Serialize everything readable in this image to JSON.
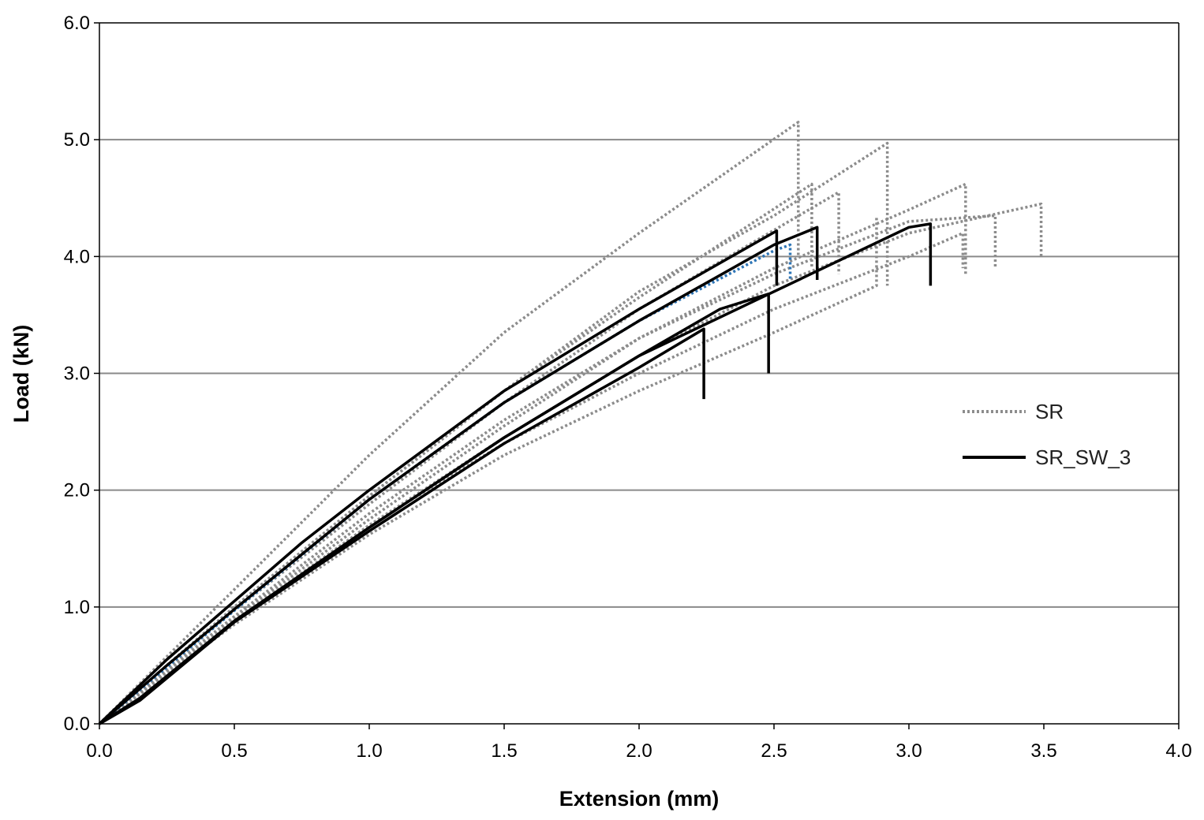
{
  "chart_data": {
    "type": "line",
    "title": "",
    "xlabel": "Extension (mm)",
    "ylabel": "Load (kN)",
    "xlim": [
      0,
      4
    ],
    "ylim": [
      0,
      6
    ],
    "xticks": [
      "0.0",
      "0.5",
      "1.0",
      "1.5",
      "2.0",
      "2.5",
      "3.0",
      "3.5",
      "4.0"
    ],
    "yticks": [
      "0.0",
      "1.0",
      "2.0",
      "3.0",
      "4.0",
      "5.0",
      "6.0"
    ],
    "grid": "horizontal",
    "legend_position": "right",
    "legend": [
      {
        "label": "SR",
        "style": "dotted",
        "color": "#8c8c8c"
      },
      {
        "label": "SR_SW_3",
        "style": "solid",
        "color": "#000000"
      }
    ],
    "series": [
      {
        "name": "SR",
        "style": "dotted",
        "color": "#8c8c8c",
        "points": [
          [
            0,
            0
          ],
          [
            0.5,
            1.15
          ],
          [
            1.0,
            2.3
          ],
          [
            1.5,
            3.35
          ],
          [
            2.0,
            4.2
          ],
          [
            2.59,
            5.15
          ],
          [
            2.59,
            4.0
          ]
        ]
      },
      {
        "name": "SR",
        "style": "dotted",
        "color": "#8c8c8c",
        "points": [
          [
            0,
            0
          ],
          [
            0.5,
            1.0
          ],
          [
            1.0,
            1.95
          ],
          [
            1.5,
            2.85
          ],
          [
            2.0,
            3.7
          ],
          [
            2.5,
            4.35
          ],
          [
            2.92,
            4.97
          ],
          [
            2.92,
            3.75
          ]
        ]
      },
      {
        "name": "SR",
        "style": "dotted",
        "color": "#8c8c8c",
        "points": [
          [
            0,
            0
          ],
          [
            0.5,
            1.0
          ],
          [
            1.0,
            1.95
          ],
          [
            1.5,
            2.85
          ],
          [
            2.0,
            3.65
          ],
          [
            2.64,
            4.62
          ],
          [
            2.64,
            3.9
          ]
        ]
      },
      {
        "name": "SR",
        "style": "dotted",
        "color": "#8c8c8c",
        "points": [
          [
            0,
            0
          ],
          [
            0.5,
            0.97
          ],
          [
            1.0,
            1.88
          ],
          [
            1.5,
            2.75
          ],
          [
            2.0,
            3.55
          ],
          [
            2.74,
            4.55
          ],
          [
            2.74,
            3.85
          ]
        ]
      },
      {
        "name": "SR",
        "style": "dotted",
        "color": "#8c8c8c",
        "points": [
          [
            0,
            0
          ],
          [
            0.5,
            0.9
          ],
          [
            1.0,
            1.75
          ],
          [
            1.5,
            2.55
          ],
          [
            2.0,
            3.3
          ],
          [
            2.5,
            3.9
          ],
          [
            3.0,
            4.4
          ],
          [
            3.21,
            4.62
          ],
          [
            3.21,
            3.85
          ]
        ]
      },
      {
        "name": "SR",
        "style": "dotted",
        "color": "#8c8c8c",
        "points": [
          [
            0,
            0
          ],
          [
            0.5,
            0.92
          ],
          [
            1.0,
            1.8
          ],
          [
            1.5,
            2.6
          ],
          [
            2.0,
            3.3
          ],
          [
            2.5,
            3.85
          ],
          [
            3.0,
            4.3
          ],
          [
            3.32,
            4.35
          ],
          [
            3.32,
            3.9
          ]
        ]
      },
      {
        "name": "SR",
        "style": "dotted",
        "color": "#8c8c8c",
        "points": [
          [
            0,
            0
          ],
          [
            0.5,
            0.88
          ],
          [
            1.0,
            1.7
          ],
          [
            1.5,
            2.45
          ],
          [
            2.0,
            3.15
          ],
          [
            2.5,
            3.75
          ],
          [
            3.0,
            4.2
          ],
          [
            3.49,
            4.45
          ],
          [
            3.49,
            4.0
          ]
        ]
      },
      {
        "name": "SR",
        "style": "dotted",
        "color": "#8c8c8c",
        "points": [
          [
            0,
            0
          ],
          [
            0.5,
            0.88
          ],
          [
            1.0,
            1.7
          ],
          [
            1.5,
            2.4
          ],
          [
            2.0,
            3.0
          ],
          [
            2.5,
            3.55
          ],
          [
            3.0,
            4.0
          ],
          [
            3.2,
            4.2
          ],
          [
            3.2,
            3.9
          ]
        ]
      },
      {
        "name": "SR",
        "style": "dotted",
        "color": "#8c8c8c",
        "points": [
          [
            0,
            0
          ],
          [
            0.5,
            0.85
          ],
          [
            1.0,
            1.62
          ],
          [
            1.5,
            2.3
          ],
          [
            2.0,
            2.85
          ],
          [
            2.5,
            3.35
          ],
          [
            2.88,
            3.75
          ],
          [
            2.88,
            4.35
          ]
        ]
      },
      {
        "name": "SR",
        "style": "dotted",
        "color": "#2e75b6",
        "points": [
          [
            0,
            0
          ],
          [
            0.5,
            0.97
          ],
          [
            1.0,
            1.92
          ],
          [
            1.5,
            2.75
          ],
          [
            2.0,
            3.45
          ],
          [
            2.5,
            4.05
          ],
          [
            2.56,
            4.1
          ],
          [
            2.56,
            3.8
          ]
        ]
      },
      {
        "name": "SR_SW_3",
        "style": "solid",
        "color": "#000000",
        "points": [
          [
            0,
            0
          ],
          [
            0.25,
            0.55
          ],
          [
            0.5,
            1.05
          ],
          [
            0.75,
            1.55
          ],
          [
            1.0,
            2.0
          ],
          [
            1.5,
            2.85
          ],
          [
            2.0,
            3.55
          ],
          [
            2.51,
            4.22
          ],
          [
            2.51,
            3.75
          ]
        ]
      },
      {
        "name": "SR_SW_3",
        "style": "solid",
        "color": "#000000",
        "points": [
          [
            0,
            0
          ],
          [
            0.25,
            0.5
          ],
          [
            0.5,
            0.98
          ],
          [
            0.75,
            1.45
          ],
          [
            1.0,
            1.92
          ],
          [
            1.5,
            2.75
          ],
          [
            2.0,
            3.45
          ],
          [
            2.5,
            4.1
          ],
          [
            2.66,
            4.25
          ],
          [
            2.66,
            3.8
          ]
        ]
      },
      {
        "name": "SR_SW_3",
        "style": "solid",
        "color": "#000000",
        "points": [
          [
            0,
            0
          ],
          [
            0.15,
            0.22
          ],
          [
            0.5,
            0.88
          ],
          [
            1.0,
            1.68
          ],
          [
            1.5,
            2.45
          ],
          [
            2.0,
            3.15
          ],
          [
            2.5,
            3.7
          ],
          [
            3.0,
            4.25
          ],
          [
            3.08,
            4.28
          ],
          [
            3.08,
            3.75
          ]
        ]
      },
      {
        "name": "SR_SW_3",
        "style": "solid",
        "color": "#000000",
        "points": [
          [
            0,
            0
          ],
          [
            0.15,
            0.2
          ],
          [
            0.5,
            0.87
          ],
          [
            1.0,
            1.65
          ],
          [
            1.5,
            2.4
          ],
          [
            2.0,
            3.05
          ],
          [
            2.24,
            3.38
          ],
          [
            2.24,
            2.78
          ]
        ]
      },
      {
        "name": "SR_SW_3",
        "style": "solid",
        "color": "#000000",
        "points": [
          [
            0,
            0
          ],
          [
            0.15,
            0.21
          ],
          [
            0.5,
            0.88
          ],
          [
            1.0,
            1.68
          ],
          [
            1.5,
            2.45
          ],
          [
            2.0,
            3.15
          ],
          [
            2.3,
            3.55
          ],
          [
            2.48,
            3.68
          ],
          [
            2.48,
            3.0
          ]
        ]
      }
    ]
  }
}
